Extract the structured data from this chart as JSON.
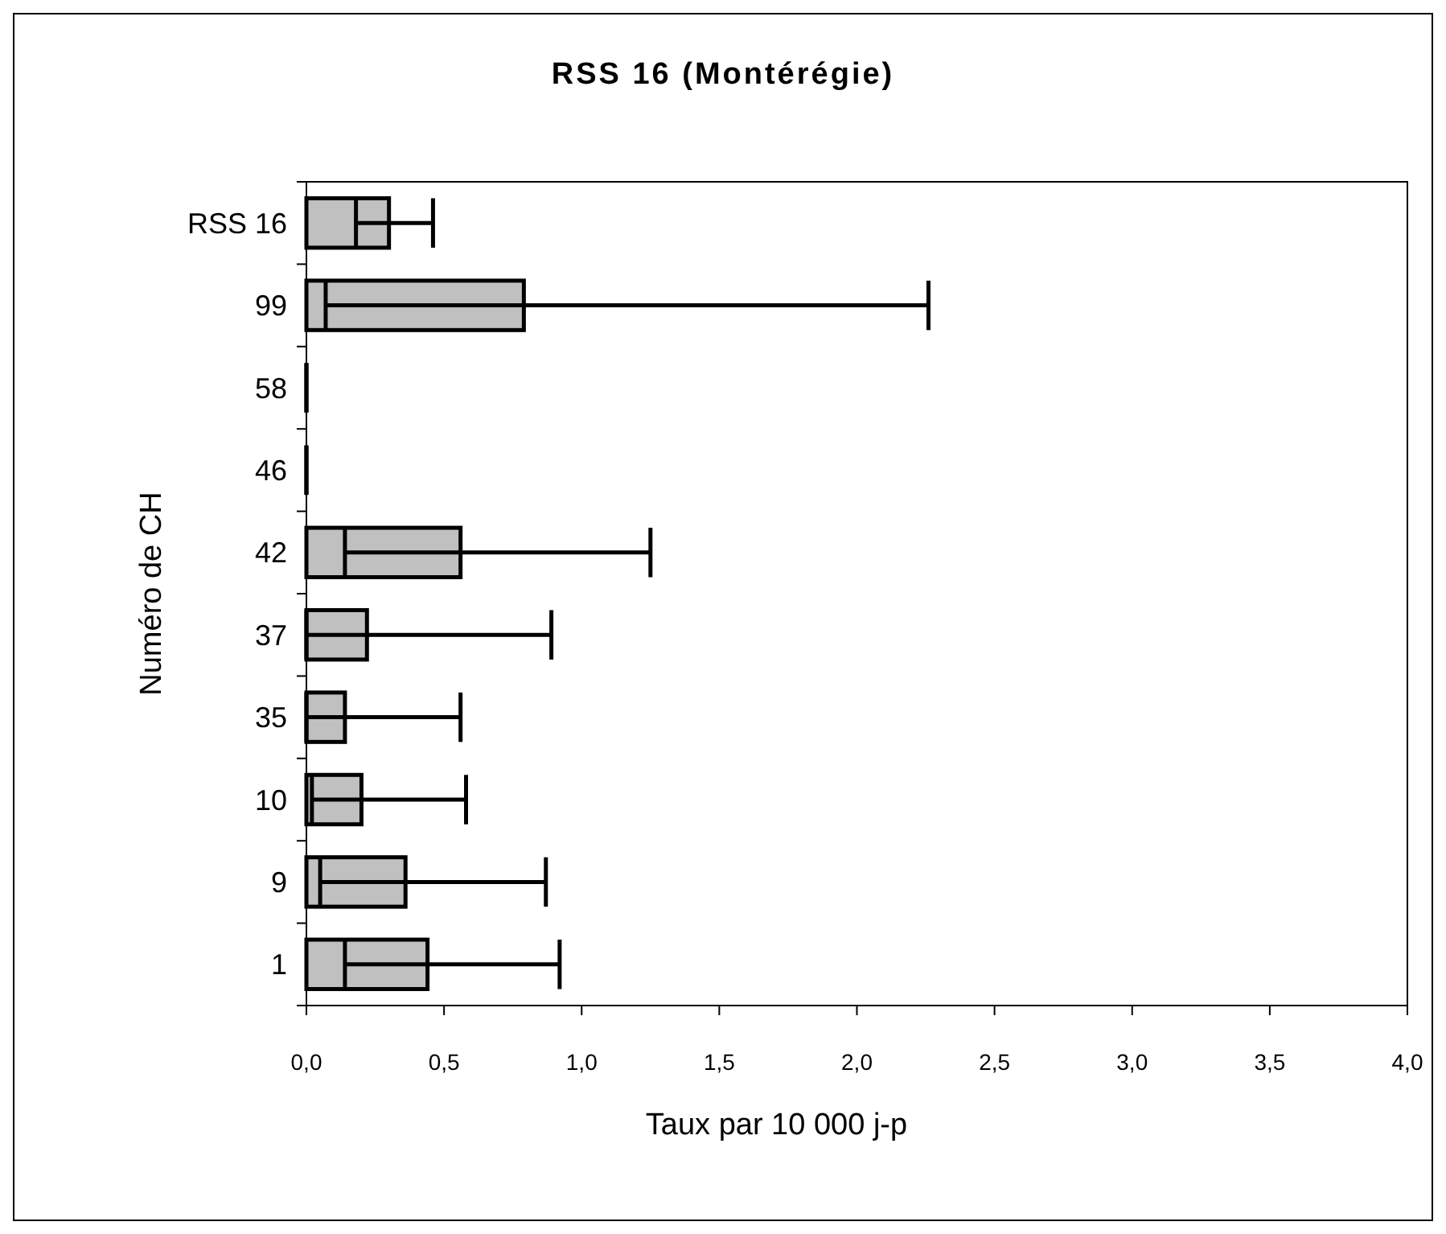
{
  "chart_data": {
    "type": "bar",
    "orientation": "horizontal",
    "title": "RSS 16 (Montérégie)",
    "xlabel": "Taux par 10 000 j-p",
    "ylabel": "Numéro de CH",
    "categories": [
      "RSS 16",
      "99",
      "58",
      "46",
      "42",
      "37",
      "35",
      "10",
      "9",
      "1"
    ],
    "values": [
      0.3,
      0.79,
      0,
      0,
      0.56,
      0.22,
      0.14,
      0.2,
      0.36,
      0.44
    ],
    "errors": [
      [
        0.18,
        0.46
      ],
      [
        0.07,
        2.26
      ],
      [
        0,
        0
      ],
      [
        0,
        0
      ],
      [
        0.14,
        1.25
      ],
      [
        0,
        0.89
      ],
      [
        0,
        0.56
      ],
      [
        0.02,
        0.58
      ],
      [
        0.05,
        0.87
      ],
      [
        0.14,
        0.92
      ]
    ],
    "color": "#c0c0c0",
    "xlim": [
      0,
      4
    ],
    "xticks": [
      {
        "value": 0,
        "label": "0,0"
      },
      {
        "value": 0.5,
        "label": "0,5"
      },
      {
        "value": 1,
        "label": "1,0"
      },
      {
        "value": 1.5,
        "label": "1,5"
      },
      {
        "value": 2,
        "label": "2,0"
      },
      {
        "value": 2.5,
        "label": "2,5"
      },
      {
        "value": 3,
        "label": "3,0"
      },
      {
        "value": 3.5,
        "label": "3,5"
      },
      {
        "value": 4,
        "label": "4,0"
      }
    ],
    "grid": false
  }
}
